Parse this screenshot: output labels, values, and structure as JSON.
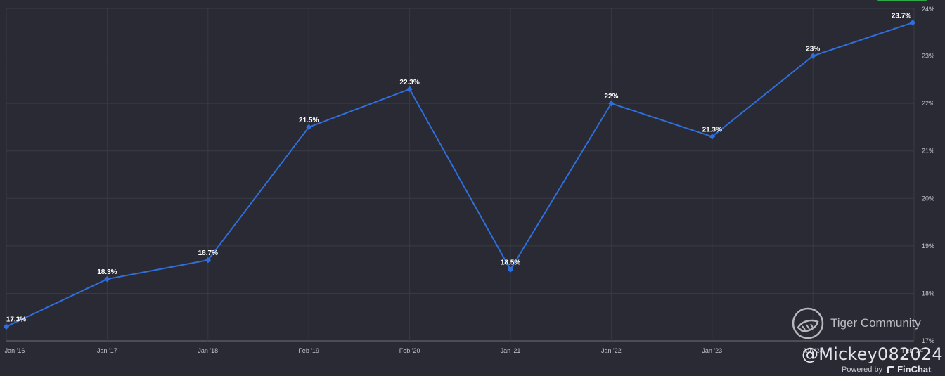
{
  "chart_data": {
    "type": "line",
    "x": [
      "Jan '16",
      "Jan '17",
      "Jan '18",
      "Feb '19",
      "Feb '20",
      "Jan '21",
      "Jan '22",
      "Jan '23",
      "Jan '24",
      "Feb '24"
    ],
    "series": [
      {
        "values": [
          17.3,
          18.3,
          18.7,
          21.5,
          22.3,
          18.5,
          22.0,
          21.3,
          23.0,
          23.7
        ],
        "labels": [
          "17.3%",
          "18.3%",
          "18.7%",
          "21.5%",
          "22.3%",
          "18.5%",
          "22%",
          "21.3%",
          "23%",
          "23.7%"
        ]
      }
    ],
    "ylim": [
      17,
      24
    ],
    "y_ticks": [
      "17%",
      "18%",
      "19%",
      "20%",
      "21%",
      "22%",
      "23%",
      "24%"
    ],
    "x_ticks": [
      "Jan '16",
      "Jan '17",
      "Jan '18",
      "Feb '19",
      "Feb '20",
      "Jan '21",
      "Jan '22",
      "Jan '23",
      "Jan '24",
      "Feb '24"
    ],
    "grid": true,
    "line_color": "#2f6fdb",
    "background": "#292a33"
  },
  "watermark": {
    "brand": "Tiger Community",
    "handle": "@Mickey082024",
    "powered_by": "Powered by",
    "powered_brand": "FinChat"
  }
}
